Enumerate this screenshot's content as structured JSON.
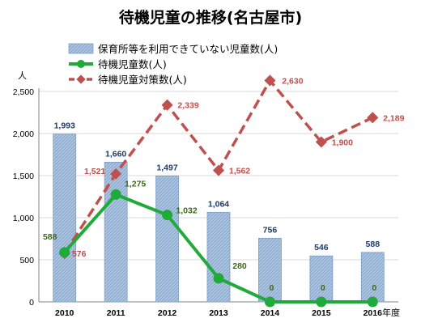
{
  "chart_data": {
    "type": "bar",
    "title": "待機児童の推移(名古屋市)",
    "ylabel": "人",
    "xlabel": "年度",
    "ylim": [
      0,
      2500
    ],
    "yticks": [
      "0",
      "500",
      "1,000",
      "1,500",
      "2,000",
      "2,500"
    ],
    "categories": [
      "2010",
      "2011",
      "2012",
      "2013",
      "2014",
      "2015",
      "2016"
    ],
    "grid": true,
    "legend_position": "top-left",
    "series": [
      {
        "name": "保育所等を利用できていない児童数(人)",
        "type": "bar",
        "values": [
          1993,
          1660,
          1497,
          1064,
          756,
          546,
          588
        ],
        "labels": [
          "1,993",
          "1,660",
          "1,497",
          "1,064",
          "756",
          "546",
          "588"
        ],
        "color": "#9bb8d9",
        "label_color": "#1f3a6b"
      },
      {
        "name": "待機児童数(人)",
        "type": "line",
        "values": [
          588,
          1275,
          1032,
          280,
          0,
          0,
          0
        ],
        "labels": [
          "588",
          "1,275",
          "1,032",
          "280",
          "0",
          "0",
          "0"
        ],
        "color": "#1faa3a",
        "label_color": "#3a6b1a"
      },
      {
        "name": "待機児童対策数(人)",
        "type": "line-dashed",
        "values": [
          576,
          1521,
          2339,
          1562,
          2630,
          1900,
          2189
        ],
        "labels": [
          "576",
          "1,521",
          "2,339",
          "1,562",
          "2,630",
          "1,900",
          "2,189"
        ],
        "color": "#c0504d",
        "label_color": "#c0504d"
      }
    ]
  }
}
